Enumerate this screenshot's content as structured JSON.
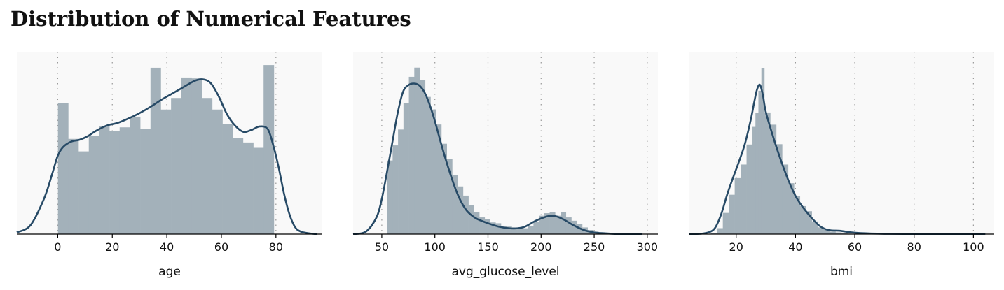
{
  "title": "Distribution of Numerical Features",
  "colors": {
    "background": "#f9f9f9",
    "bar": "#a3b1ba",
    "line": "#274a66",
    "grid": "#999999",
    "axis": "#000000"
  },
  "chart_data": [
    {
      "type": "bar",
      "xlabel": "age",
      "xlim": [
        -15,
        97
      ],
      "xticks": [
        0,
        20,
        40,
        60,
        80
      ],
      "tick_labels": [
        "0",
        "20",
        "40",
        "60",
        "80"
      ],
      "grid": "vertical dotted",
      "bin_edges": [
        0.08,
        3.85,
        7.62,
        11.39,
        15.16,
        18.93,
        22.7,
        26.47,
        30.24,
        34.01,
        37.78,
        41.55,
        45.32,
        49.09,
        52.86,
        56.63,
        60.4,
        64.17,
        67.94,
        71.71,
        75.48,
        79.25,
        83.02
      ],
      "densities": [
        0.0147,
        0.0107,
        0.0093,
        0.011,
        0.0121,
        0.0116,
        0.012,
        0.0132,
        0.0118,
        0.0187,
        0.014,
        0.0153,
        0.0176,
        0.0175,
        0.0153,
        0.014,
        0.0124,
        0.0108,
        0.0103,
        0.0097,
        0.019
      ],
      "kde": {
        "x": [
          -15,
          -10,
          -5,
          -2,
          0,
          2,
          5,
          8,
          11,
          14,
          18,
          22,
          26,
          30,
          34,
          38,
          42,
          46,
          50,
          53,
          56,
          59,
          62,
          65,
          68,
          71,
          74,
          77,
          79,
          81,
          83,
          85,
          87,
          89,
          92,
          95
        ],
        "y": [
          0.0002,
          0.001,
          0.004,
          0.0068,
          0.0088,
          0.0098,
          0.0104,
          0.0106,
          0.011,
          0.0116,
          0.0122,
          0.0125,
          0.013,
          0.0136,
          0.0143,
          0.0151,
          0.0158,
          0.0165,
          0.0172,
          0.0174,
          0.017,
          0.0155,
          0.0135,
          0.0122,
          0.0115,
          0.0117,
          0.0121,
          0.0118,
          0.01,
          0.0075,
          0.0045,
          0.0022,
          0.0008,
          0.0003,
          0.0001,
          0.0
        ]
      },
      "ylim": [
        0,
        0.0205
      ]
    },
    {
      "type": "bar",
      "xlabel": "avg_glucose_level",
      "xlim": [
        23,
        310
      ],
      "xticks": [
        50,
        100,
        150,
        200,
        250,
        300
      ],
      "tick_labels": [
        "50",
        "100",
        "150",
        "200",
        "250",
        "300"
      ],
      "grid": "vertical dotted",
      "bin_edges": [
        55.1,
        60.2,
        65.3,
        70.4,
        75.5,
        80.6,
        85.7,
        90.8,
        95.9,
        101.0,
        106.1,
        111.2,
        116.3,
        121.4,
        126.5,
        131.6,
        136.7,
        141.8,
        146.9,
        152.0,
        157.1,
        162.2,
        167.3,
        172.4,
        177.5,
        182.6,
        187.7,
        192.8,
        197.9,
        203.0,
        208.1,
        213.2,
        218.3,
        223.4,
        228.5,
        233.6,
        238.7,
        243.8,
        248.9,
        254.0,
        259.1,
        264.2,
        269.3
      ],
      "densities": [
        0.0088,
        0.0106,
        0.0125,
        0.0157,
        0.0188,
        0.0199,
        0.0184,
        0.0164,
        0.0149,
        0.0131,
        0.0108,
        0.009,
        0.0071,
        0.0057,
        0.0046,
        0.0035,
        0.0026,
        0.002,
        0.0018,
        0.0014,
        0.0013,
        0.001,
        0.0009,
        0.0008,
        0.0007,
        0.0007,
        0.001,
        0.0015,
        0.0022,
        0.0025,
        0.0026,
        0.0022,
        0.0026,
        0.002,
        0.0016,
        0.0012,
        0.0008,
        0.0005,
        0.0003,
        0.0002,
        0.0001,
        0.0001
      ],
      "kde": {
        "x": [
          23,
          35,
          45,
          50,
          55,
          60,
          65,
          70,
          75,
          80,
          85,
          90,
          95,
          100,
          105,
          110,
          115,
          120,
          125,
          130,
          135,
          140,
          150,
          160,
          170,
          178,
          185,
          195,
          205,
          210,
          215,
          222,
          230,
          240,
          250,
          260,
          275,
          295
        ],
        "y": [
          0.0,
          0.0003,
          0.002,
          0.0042,
          0.0075,
          0.011,
          0.0145,
          0.017,
          0.0178,
          0.018,
          0.0178,
          0.017,
          0.0155,
          0.0135,
          0.0112,
          0.009,
          0.007,
          0.0052,
          0.0038,
          0.0028,
          0.0022,
          0.0018,
          0.0013,
          0.0009,
          0.0007,
          0.0007,
          0.0009,
          0.0016,
          0.0021,
          0.0022,
          0.0021,
          0.0017,
          0.0011,
          0.0005,
          0.0002,
          0.0001,
          0.0,
          0.0
        ]
      },
      "ylim": [
        0,
        0.0218
      ]
    },
    {
      "type": "bar",
      "xlabel": "bmi",
      "xlim": [
        4,
        107
      ],
      "xticks": [
        20,
        40,
        60,
        80,
        100
      ],
      "tick_labels": [
        "20",
        "40",
        "60",
        "80",
        "100"
      ],
      "grid": "vertical dotted",
      "bin_edges": [
        11.5,
        13.5,
        15.5,
        17.5,
        19.5,
        21.5,
        23.5,
        25.5,
        26.5,
        27.5,
        28.5,
        29.5,
        31.5,
        33.5,
        35.5,
        37.5,
        39.5,
        41.5,
        43.5,
        45.5,
        47.5,
        49.5,
        51.5,
        53.5,
        55.5,
        57.5,
        59.5,
        61.5,
        97.6
      ],
      "densities": [
        0.0008,
        0.0035,
        0.0125,
        0.0232,
        0.033,
        0.041,
        0.0528,
        0.0632,
        0.0715,
        0.0845,
        0.098,
        0.0717,
        0.0645,
        0.053,
        0.041,
        0.03,
        0.0225,
        0.0165,
        0.0135,
        0.0075,
        0.004,
        0.0025,
        0.0015,
        0.001,
        0.0005,
        0.0003,
        0.0002,
        0.0001
      ],
      "kde": {
        "x": [
          4,
          8,
          11,
          13,
          15,
          17,
          19,
          21,
          23,
          25,
          26,
          27,
          28,
          29,
          30,
          32,
          34,
          36,
          38,
          40,
          42,
          44,
          46,
          48,
          50,
          52,
          55,
          58,
          62,
          70,
          80,
          90,
          100,
          104
        ],
        "y": [
          0.0,
          0.0002,
          0.0012,
          0.004,
          0.012,
          0.0235,
          0.0335,
          0.043,
          0.0535,
          0.068,
          0.077,
          0.085,
          0.088,
          0.082,
          0.072,
          0.06,
          0.049,
          0.039,
          0.03,
          0.0225,
          0.017,
          0.0125,
          0.0085,
          0.005,
          0.003,
          0.0022,
          0.002,
          0.0012,
          0.0006,
          0.0002,
          0.0001,
          0.0001,
          0.0001,
          0.0
        ]
      },
      "ylim": [
        0,
        0.1075
      ]
    }
  ]
}
